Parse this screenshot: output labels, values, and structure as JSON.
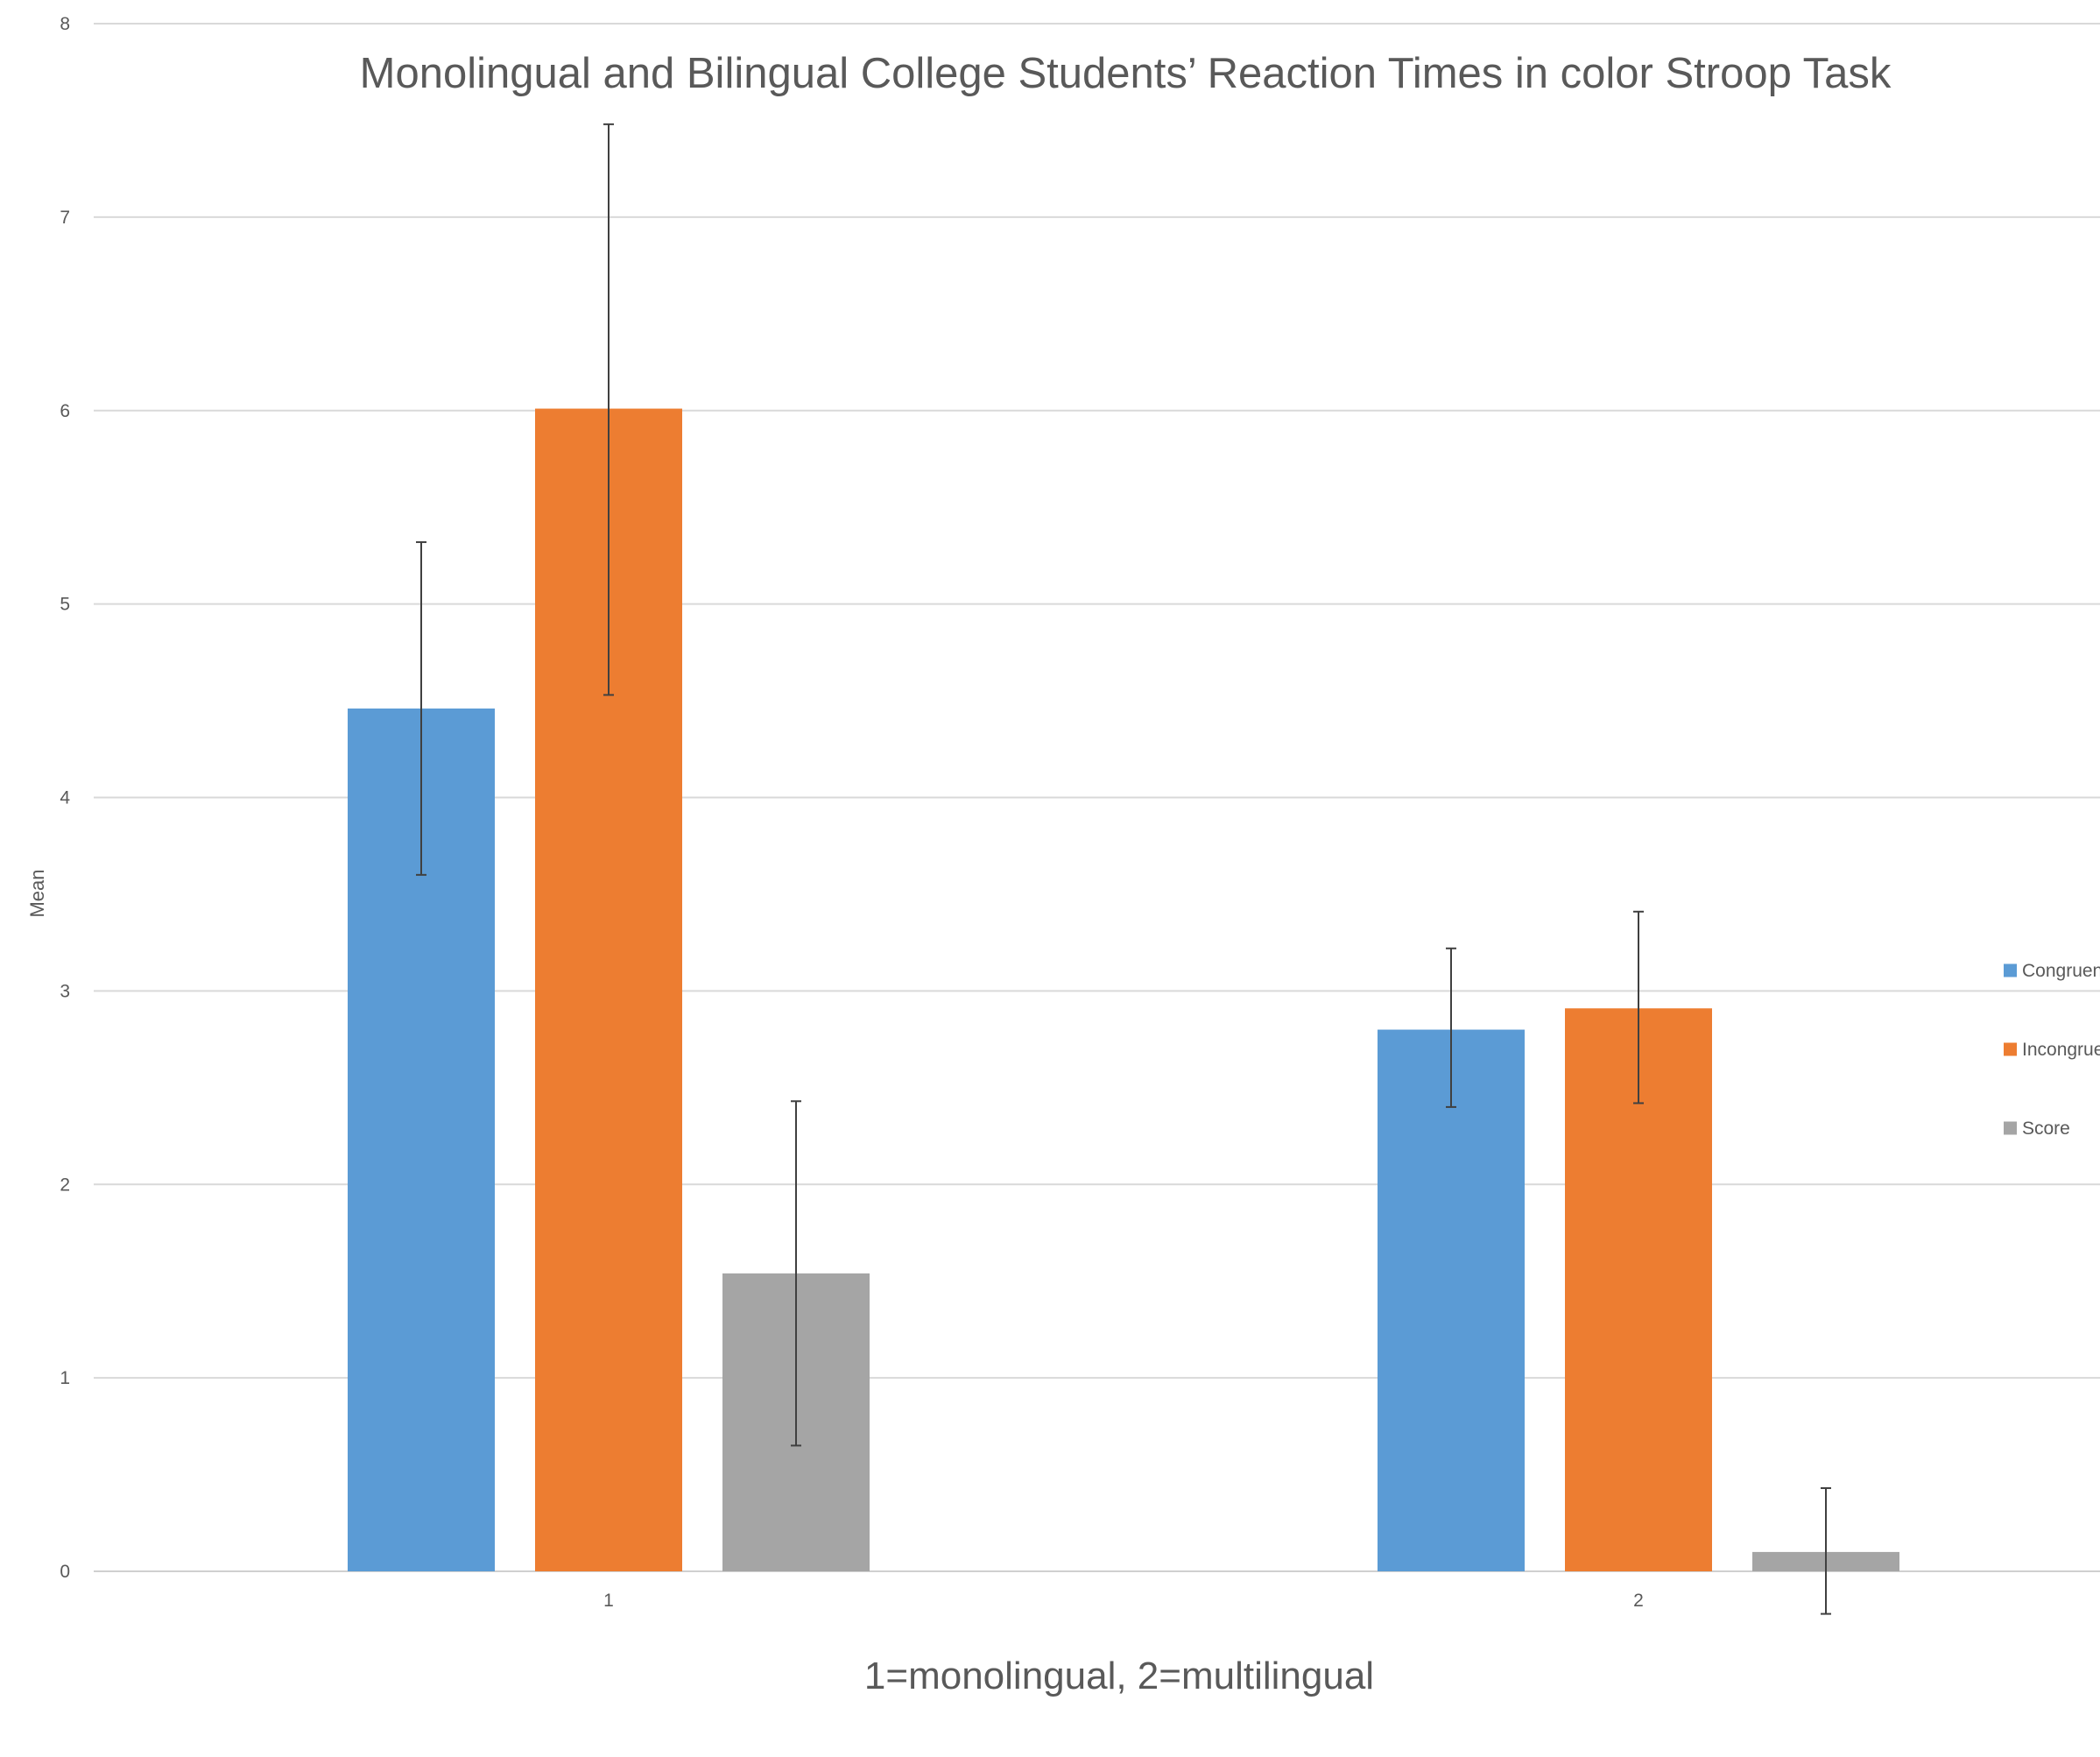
{
  "chart_data": {
    "type": "bar",
    "title": "Monolingual and Bilingual College Students’ Reaction Times in color Stroop Task",
    "xlabel": "1=monolingual, 2=multilingual",
    "ylabel": "Mean",
    "categories": [
      "1",
      "2"
    ],
    "ylim": [
      0,
      8
    ],
    "yticks": [
      0,
      1,
      2,
      3,
      4,
      5,
      6,
      7,
      8
    ],
    "grid": true,
    "legend_position": "right",
    "series": [
      {
        "name": "Congruen",
        "color": "#5b9bd5",
        "values": [
          4.46,
          2.8
        ],
        "error_bars": [
          [
            3.6,
            5.32
          ],
          [
            2.4,
            3.22
          ]
        ]
      },
      {
        "name": "Incongrue",
        "color": "#ed7d31",
        "values": [
          6.01,
          2.91
        ],
        "error_bars": [
          [
            4.53,
            7.48
          ],
          [
            2.42,
            3.41
          ]
        ]
      },
      {
        "name": "Score",
        "color": "#a5a5a5",
        "values": [
          1.54,
          0.1
        ],
        "error_bars": [
          [
            0.65,
            2.43
          ],
          [
            -0.22,
            0.43
          ]
        ]
      }
    ]
  }
}
